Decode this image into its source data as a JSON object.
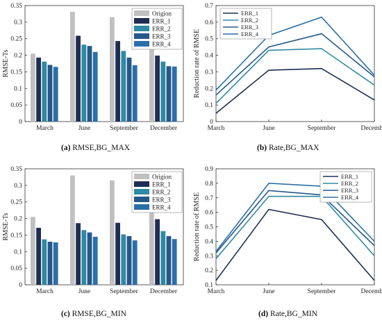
{
  "figure": {
    "panels": [
      {
        "letter": "(a)",
        "text": "RMSE,BG_MAX"
      },
      {
        "letter": "(b)",
        "text": "Rate,BG_MAX"
      },
      {
        "letter": "(c)",
        "text": "RMSE,BG_MIN"
      },
      {
        "letter": "(d)",
        "text": "Rate,BG_MIN"
      }
    ]
  },
  "chart_data": [
    {
      "type": "bar",
      "caption": "RMSE,BG_MAX",
      "ylabel": "RMSE-Ts",
      "ylim": [
        0,
        0.35
      ],
      "yticks": [
        0,
        0.05,
        0.1,
        0.15,
        0.2,
        0.25,
        0.3,
        0.35
      ],
      "categories": [
        "March",
        "June",
        "September",
        "December"
      ],
      "legend_position": "top-right",
      "series": [
        {
          "name": "Origion",
          "color": "#c0c0c0",
          "values": [
            0.205,
            0.331,
            0.315,
            0.231
          ]
        },
        {
          "name": "ERR_1",
          "color": "#1f2d52",
          "values": [
            0.193,
            0.259,
            0.243,
            0.199
          ]
        },
        {
          "name": "ERR_2",
          "color": "#2e8aa3",
          "values": [
            0.181,
            0.232,
            0.213,
            0.181
          ]
        },
        {
          "name": "ERR_3",
          "color": "#26578a",
          "values": [
            0.171,
            0.228,
            0.193,
            0.167
          ]
        },
        {
          "name": "ERR_4",
          "color": "#2b6fa8",
          "values": [
            0.165,
            0.21,
            0.17,
            0.166
          ]
        }
      ]
    },
    {
      "type": "line",
      "caption": "Rate,BG_MAX",
      "ylabel": "Reduction rate of RMSE",
      "ylim": [
        0,
        0.7
      ],
      "yticks": [
        0,
        0.1,
        0.2,
        0.3,
        0.4,
        0.5,
        0.6,
        0.7
      ],
      "categories": [
        "March",
        "June",
        "September",
        "December"
      ],
      "legend_position": "top-left",
      "series": [
        {
          "name": "ERR_1",
          "color": "#1f2d52",
          "values": [
            0.05,
            0.31,
            0.32,
            0.13
          ]
        },
        {
          "name": "ERR_2",
          "color": "#2e8aa3",
          "values": [
            0.11,
            0.43,
            0.44,
            0.22
          ]
        },
        {
          "name": "ERR_3",
          "color": "#26578a",
          "values": [
            0.16,
            0.45,
            0.53,
            0.27
          ]
        },
        {
          "name": "ERR_4",
          "color": "#2b6fa8",
          "values": [
            0.19,
            0.52,
            0.63,
            0.28
          ]
        }
      ]
    },
    {
      "type": "bar",
      "caption": "RMSE,BG_MIN",
      "ylabel": "RMSE-Ts",
      "ylim": [
        0,
        0.35
      ],
      "yticks": [
        0,
        0.05,
        0.1,
        0.15,
        0.2,
        0.25,
        0.3,
        0.35
      ],
      "categories": [
        "March",
        "June",
        "September",
        "December"
      ],
      "legend_position": "top-right",
      "series": [
        {
          "name": "Origion",
          "color": "#c0c0c0",
          "values": [
            0.205,
            0.33,
            0.315,
            0.23
          ]
        },
        {
          "name": "ERR_1",
          "color": "#1f2d52",
          "values": [
            0.172,
            0.186,
            0.187,
            0.198
          ]
        },
        {
          "name": "ERR_2",
          "color": "#2e8aa3",
          "values": [
            0.137,
            0.165,
            0.152,
            0.162
          ]
        },
        {
          "name": "ERR_3",
          "color": "#26578a",
          "values": [
            0.13,
            0.158,
            0.147,
            0.147
          ]
        },
        {
          "name": "ERR_4",
          "color": "#2b6fa8",
          "values": [
            0.128,
            0.145,
            0.134,
            0.138
          ]
        }
      ]
    },
    {
      "type": "line",
      "caption": "Rate,BG_MIN",
      "ylabel": "Reduction rate of RMSE",
      "ylim": [
        0.1,
        0.9
      ],
      "yticks": [
        0.1,
        0.2,
        0.3,
        0.4,
        0.5,
        0.6,
        0.7,
        0.8,
        0.9
      ],
      "categories": [
        "March",
        "June",
        "September",
        "December"
      ],
      "legend_position": "top-right",
      "series": [
        {
          "name": "ERR_1",
          "color": "#1f2d52",
          "values": [
            0.13,
            0.62,
            0.55,
            0.13
          ]
        },
        {
          "name": "ERR_2",
          "color": "#2e8aa3",
          "values": [
            0.28,
            0.71,
            0.71,
            0.3
          ]
        },
        {
          "name": "ERR_3",
          "color": "#26578a",
          "values": [
            0.32,
            0.75,
            0.72,
            0.37
          ]
        },
        {
          "name": "ERR_4",
          "color": "#2b6fa8",
          "values": [
            0.33,
            0.8,
            0.78,
            0.4
          ]
        }
      ]
    }
  ]
}
